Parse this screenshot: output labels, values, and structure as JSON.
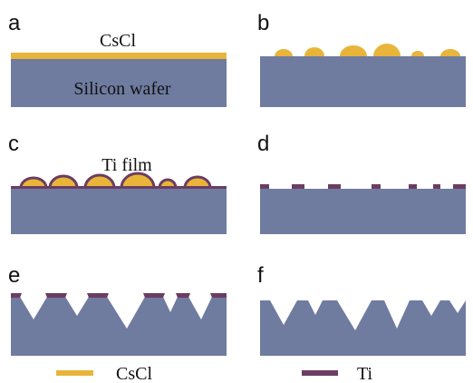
{
  "panels": [
    {
      "label": "a"
    },
    {
      "label": "b"
    },
    {
      "label": "c"
    },
    {
      "label": "d"
    },
    {
      "label": "e"
    },
    {
      "label": "f"
    }
  ],
  "annotations": {
    "cscl": "CsCl",
    "silicon": "Silicon wafer",
    "ti": "Ti film"
  },
  "legend": [
    {
      "label": "CsCl"
    },
    {
      "label": "Ti"
    }
  ]
}
